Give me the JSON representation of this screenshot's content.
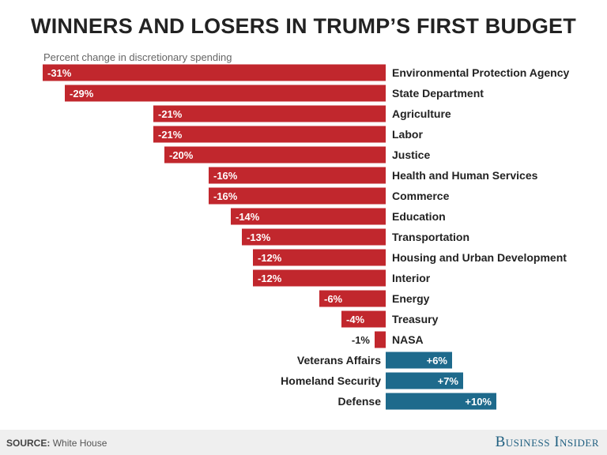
{
  "chart_data": {
    "type": "bar",
    "orientation": "horizontal",
    "title": "WINNERS AND LOSERS IN TRUMP’S FIRST BUDGET",
    "subtitle": "Percent change in discretionary spending",
    "categories": [
      "Environmental Protection Agency",
      "State Department",
      "Agriculture",
      "Labor",
      "Justice",
      "Health and Human Services",
      "Commerce",
      "Education",
      "Transportation",
      "Housing and Urban Development",
      "Interior",
      "Energy",
      "Treasury",
      "NASA",
      "Veterans Affairs",
      "Homeland Security",
      "Defense"
    ],
    "values": [
      -31,
      -29,
      -21,
      -21,
      -20,
      -16,
      -16,
      -14,
      -13,
      -12,
      -12,
      -6,
      -4,
      -1,
      6,
      7,
      10
    ],
    "value_labels": [
      "-31%",
      "-29%",
      "-21%",
      "-21%",
      "-20%",
      "-16%",
      "-16%",
      "-14%",
      "-13%",
      "-12%",
      "-12%",
      "-6%",
      "-4%",
      "-1%",
      "+6%",
      "+7%",
      "+10%"
    ],
    "xlim": [
      -31,
      10
    ],
    "colors": {
      "negative": "#c1272d",
      "positive": "#1e6a8c"
    }
  },
  "footer": {
    "source_label": "SOURCE:",
    "source_value": "White House",
    "brand": "Business Insider"
  }
}
